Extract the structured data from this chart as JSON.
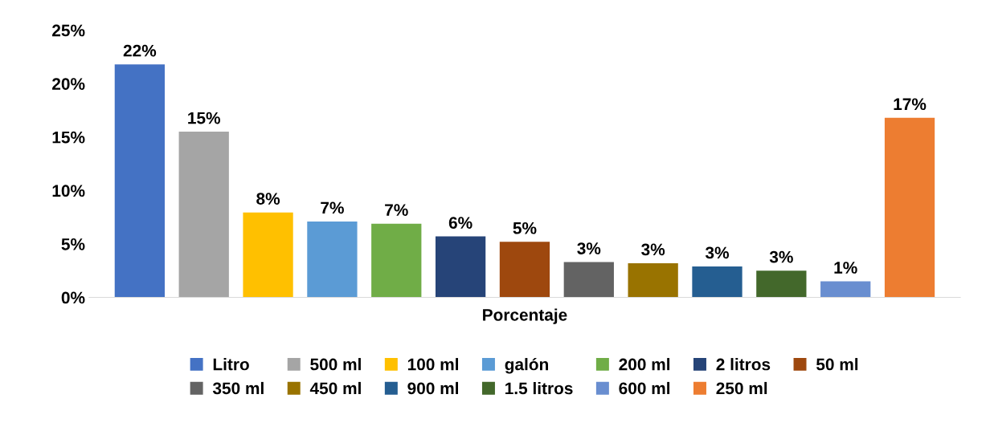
{
  "chart_data": {
    "type": "bar",
    "categories": [
      "Porcentaje"
    ],
    "series": [
      {
        "name": "Litro",
        "color": "#4472c4",
        "values": [
          21.8
        ],
        "value_labels": [
          "22%"
        ]
      },
      {
        "name": "500 ml",
        "color": "#a5a5a5",
        "values": [
          15.5
        ],
        "value_labels": [
          "15%"
        ]
      },
      {
        "name": "100 ml",
        "color": "#ffc000",
        "values": [
          7.95
        ],
        "value_labels": [
          "8%"
        ]
      },
      {
        "name": "galón",
        "color": "#5b9bd5",
        "values": [
          7.1
        ],
        "value_labels": [
          "7%"
        ]
      },
      {
        "name": "200 ml",
        "color": "#70ad47",
        "values": [
          6.9
        ],
        "value_labels": [
          "7%"
        ]
      },
      {
        "name": "2 litros",
        "color": "#264478",
        "values": [
          5.7
        ],
        "value_labels": [
          "6%"
        ]
      },
      {
        "name": "50 ml",
        "color": "#9e480e",
        "values": [
          5.2
        ],
        "value_labels": [
          "5%"
        ]
      },
      {
        "name": "350 ml",
        "color": "#636363",
        "values": [
          3.3
        ],
        "value_labels": [
          "3%"
        ]
      },
      {
        "name": "450 ml",
        "color": "#997300",
        "values": [
          3.2
        ],
        "value_labels": [
          "3%"
        ]
      },
      {
        "name": "900 ml",
        "color": "#255e91",
        "values": [
          2.9
        ],
        "value_labels": [
          "3%"
        ]
      },
      {
        "name": "1.5 litros",
        "color": "#43682b",
        "values": [
          2.5
        ],
        "value_labels": [
          "3%"
        ]
      },
      {
        "name": "600 ml",
        "color": "#698ed0",
        "values": [
          1.5
        ],
        "value_labels": [
          "1%"
        ]
      },
      {
        "name": "250 ml",
        "color": "#ed7d31",
        "values": [
          16.8
        ],
        "value_labels": [
          "17%"
        ]
      }
    ],
    "ylim": [
      0,
      25
    ],
    "yticks": [
      {
        "value": 0,
        "label": "0%"
      },
      {
        "value": 5,
        "label": "5%"
      },
      {
        "value": 10,
        "label": "10%"
      },
      {
        "value": 15,
        "label": "15%"
      },
      {
        "value": 20,
        "label": "20%"
      },
      {
        "value": 25,
        "label": "25%"
      }
    ],
    "grid": false,
    "legend": "bottom"
  }
}
